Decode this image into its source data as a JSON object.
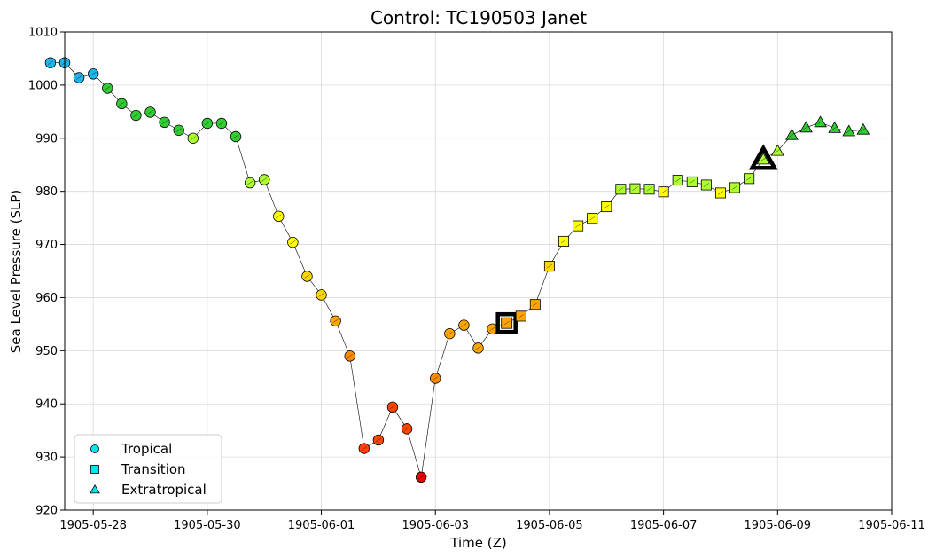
{
  "chart_data": {
    "type": "scatter",
    "title": "Control: TC190503 Janet",
    "xlabel": "Time (Z)",
    "ylabel": "Sea Level Pressure (SLP)",
    "xlim": [
      "1905-05-27 12:00",
      "1905-06-11 00:00"
    ],
    "ylim": [
      920,
      1010
    ],
    "x_tick_labels": [
      "1905-05-28",
      "1905-05-30",
      "1905-06-01",
      "1905-06-03",
      "1905-06-05",
      "1905-06-07",
      "1905-06-09",
      "1905-06-11"
    ],
    "y_tick_labels": [
      "920",
      "930",
      "940",
      "950",
      "960",
      "970",
      "980",
      "990",
      "1000",
      "1010"
    ],
    "y_ticks": [
      920,
      930,
      940,
      950,
      960,
      970,
      980,
      990,
      1000,
      1010
    ],
    "grid": true,
    "legend_position": "lower-left",
    "legend": [
      {
        "label": "Tropical",
        "marker": "circle"
      },
      {
        "label": "Transition",
        "marker": "square"
      },
      {
        "label": "Extratropical",
        "marker": "triangle"
      }
    ],
    "legend_color": "#00e5ee",
    "points": [
      {
        "time": "1905-05-27 06:00",
        "slp": 1004.2,
        "marker": "circle",
        "color": "#1cb5ec"
      },
      {
        "time": "1905-05-27 12:00",
        "slp": 1004.2,
        "marker": "circle",
        "color": "#1cb5ec"
      },
      {
        "time": "1905-05-27 18:00",
        "slp": 1001.4,
        "marker": "circle",
        "color": "#1cb5ec"
      },
      {
        "time": "1905-05-28 00:00",
        "slp": 1002.1,
        "marker": "circle",
        "color": "#1cb5ec"
      },
      {
        "time": "1905-05-28 06:00",
        "slp": 999.4,
        "marker": "circle",
        "color": "#32cd32"
      },
      {
        "time": "1905-05-28 12:00",
        "slp": 996.5,
        "marker": "circle",
        "color": "#32cd32"
      },
      {
        "time": "1905-05-28 18:00",
        "slp": 994.3,
        "marker": "circle",
        "color": "#32cd32"
      },
      {
        "time": "1905-05-29 00:00",
        "slp": 994.9,
        "marker": "circle",
        "color": "#32cd32"
      },
      {
        "time": "1905-05-29 06:00",
        "slp": 993.0,
        "marker": "circle",
        "color": "#32cd32"
      },
      {
        "time": "1905-05-29 12:00",
        "slp": 991.5,
        "marker": "circle",
        "color": "#32cd32"
      },
      {
        "time": "1905-05-29 18:00",
        "slp": 990.0,
        "marker": "circle",
        "color": "#adff2f"
      },
      {
        "time": "1905-05-30 00:00",
        "slp": 992.8,
        "marker": "circle",
        "color": "#32cd32"
      },
      {
        "time": "1905-05-30 06:00",
        "slp": 992.8,
        "marker": "circle",
        "color": "#32cd32"
      },
      {
        "time": "1905-05-30 12:00",
        "slp": 990.3,
        "marker": "circle",
        "color": "#32cd32"
      },
      {
        "time": "1905-05-30 18:00",
        "slp": 981.6,
        "marker": "circle",
        "color": "#adff2f"
      },
      {
        "time": "1905-05-31 00:00",
        "slp": 982.2,
        "marker": "circle",
        "color": "#adff2f"
      },
      {
        "time": "1905-05-31 06:00",
        "slp": 975.3,
        "marker": "circle",
        "color": "#ffff00"
      },
      {
        "time": "1905-05-31 12:00",
        "slp": 970.4,
        "marker": "circle",
        "color": "#ffff00"
      },
      {
        "time": "1905-05-31 18:00",
        "slp": 964.0,
        "marker": "circle",
        "color": "#ffd700"
      },
      {
        "time": "1905-06-01 00:00",
        "slp": 960.5,
        "marker": "circle",
        "color": "#ffd700"
      },
      {
        "time": "1905-06-01 06:00",
        "slp": 955.6,
        "marker": "circle",
        "color": "#ffa500"
      },
      {
        "time": "1905-06-01 12:00",
        "slp": 949.0,
        "marker": "circle",
        "color": "#ff8c00"
      },
      {
        "time": "1905-06-01 18:00",
        "slp": 931.6,
        "marker": "circle",
        "color": "#ff4500"
      },
      {
        "time": "1905-06-02 00:00",
        "slp": 933.2,
        "marker": "circle",
        "color": "#ff4500"
      },
      {
        "time": "1905-06-02 06:00",
        "slp": 939.4,
        "marker": "circle",
        "color": "#ff4500"
      },
      {
        "time": "1905-06-02 12:00",
        "slp": 935.3,
        "marker": "circle",
        "color": "#ff4500"
      },
      {
        "time": "1905-06-02 18:00",
        "slp": 926.2,
        "marker": "circle",
        "color": "#ee0000"
      },
      {
        "time": "1905-06-03 00:00",
        "slp": 944.8,
        "marker": "circle",
        "color": "#ff8c00"
      },
      {
        "time": "1905-06-03 06:00",
        "slp": 953.2,
        "marker": "circle",
        "color": "#ffa500"
      },
      {
        "time": "1905-06-03 12:00",
        "slp": 954.8,
        "marker": "circle",
        "color": "#ffa500"
      },
      {
        "time": "1905-06-03 18:00",
        "slp": 950.5,
        "marker": "circle",
        "color": "#ffa500"
      },
      {
        "time": "1905-06-04 00:00",
        "slp": 954.1,
        "marker": "circle",
        "color": "#ffa500"
      },
      {
        "time": "1905-06-04 06:00",
        "slp": 955.2,
        "marker": "square",
        "color": "#ffa500",
        "highlight": true
      },
      {
        "time": "1905-06-04 12:00",
        "slp": 956.5,
        "marker": "square",
        "color": "#ffa500"
      },
      {
        "time": "1905-06-04 18:00",
        "slp": 958.7,
        "marker": "square",
        "color": "#ffa500"
      },
      {
        "time": "1905-06-05 00:00",
        "slp": 965.9,
        "marker": "square",
        "color": "#ffd700"
      },
      {
        "time": "1905-06-05 06:00",
        "slp": 970.6,
        "marker": "square",
        "color": "#ffff00"
      },
      {
        "time": "1905-06-05 12:00",
        "slp": 973.5,
        "marker": "square",
        "color": "#ffff00"
      },
      {
        "time": "1905-06-05 18:00",
        "slp": 974.9,
        "marker": "square",
        "color": "#ffff00"
      },
      {
        "time": "1905-06-06 00:00",
        "slp": 977.1,
        "marker": "square",
        "color": "#ffff00"
      },
      {
        "time": "1905-06-06 06:00",
        "slp": 980.4,
        "marker": "square",
        "color": "#adff2f"
      },
      {
        "time": "1905-06-06 12:00",
        "slp": 980.5,
        "marker": "square",
        "color": "#adff2f"
      },
      {
        "time": "1905-06-06 18:00",
        "slp": 980.4,
        "marker": "square",
        "color": "#adff2f"
      },
      {
        "time": "1905-06-07 00:00",
        "slp": 979.9,
        "marker": "square",
        "color": "#ffff00"
      },
      {
        "time": "1905-06-07 06:00",
        "slp": 982.1,
        "marker": "square",
        "color": "#adff2f"
      },
      {
        "time": "1905-06-07 12:00",
        "slp": 981.8,
        "marker": "square",
        "color": "#adff2f"
      },
      {
        "time": "1905-06-07 18:00",
        "slp": 981.2,
        "marker": "square",
        "color": "#adff2f"
      },
      {
        "time": "1905-06-08 00:00",
        "slp": 979.7,
        "marker": "square",
        "color": "#ffff00"
      },
      {
        "time": "1905-06-08 06:00",
        "slp": 980.7,
        "marker": "square",
        "color": "#adff2f"
      },
      {
        "time": "1905-06-08 12:00",
        "slp": 982.4,
        "marker": "square",
        "color": "#adff2f"
      },
      {
        "time": "1905-06-08 18:00",
        "slp": 986.0,
        "marker": "triangle",
        "color": "#adff2f",
        "highlight": true
      },
      {
        "time": "1905-06-09 00:00",
        "slp": 987.6,
        "marker": "triangle",
        "color": "#adff2f"
      },
      {
        "time": "1905-06-09 06:00",
        "slp": 990.6,
        "marker": "triangle",
        "color": "#32cd32"
      },
      {
        "time": "1905-06-09 12:00",
        "slp": 992.0,
        "marker": "triangle",
        "color": "#32cd32"
      },
      {
        "time": "1905-06-09 18:00",
        "slp": 993.0,
        "marker": "triangle",
        "color": "#32cd32"
      },
      {
        "time": "1905-06-10 00:00",
        "slp": 991.9,
        "marker": "triangle",
        "color": "#32cd32"
      },
      {
        "time": "1905-06-10 06:00",
        "slp": 991.3,
        "marker": "triangle",
        "color": "#32cd32"
      },
      {
        "time": "1905-06-10 12:00",
        "slp": 991.6,
        "marker": "triangle",
        "color": "#32cd32"
      }
    ]
  }
}
